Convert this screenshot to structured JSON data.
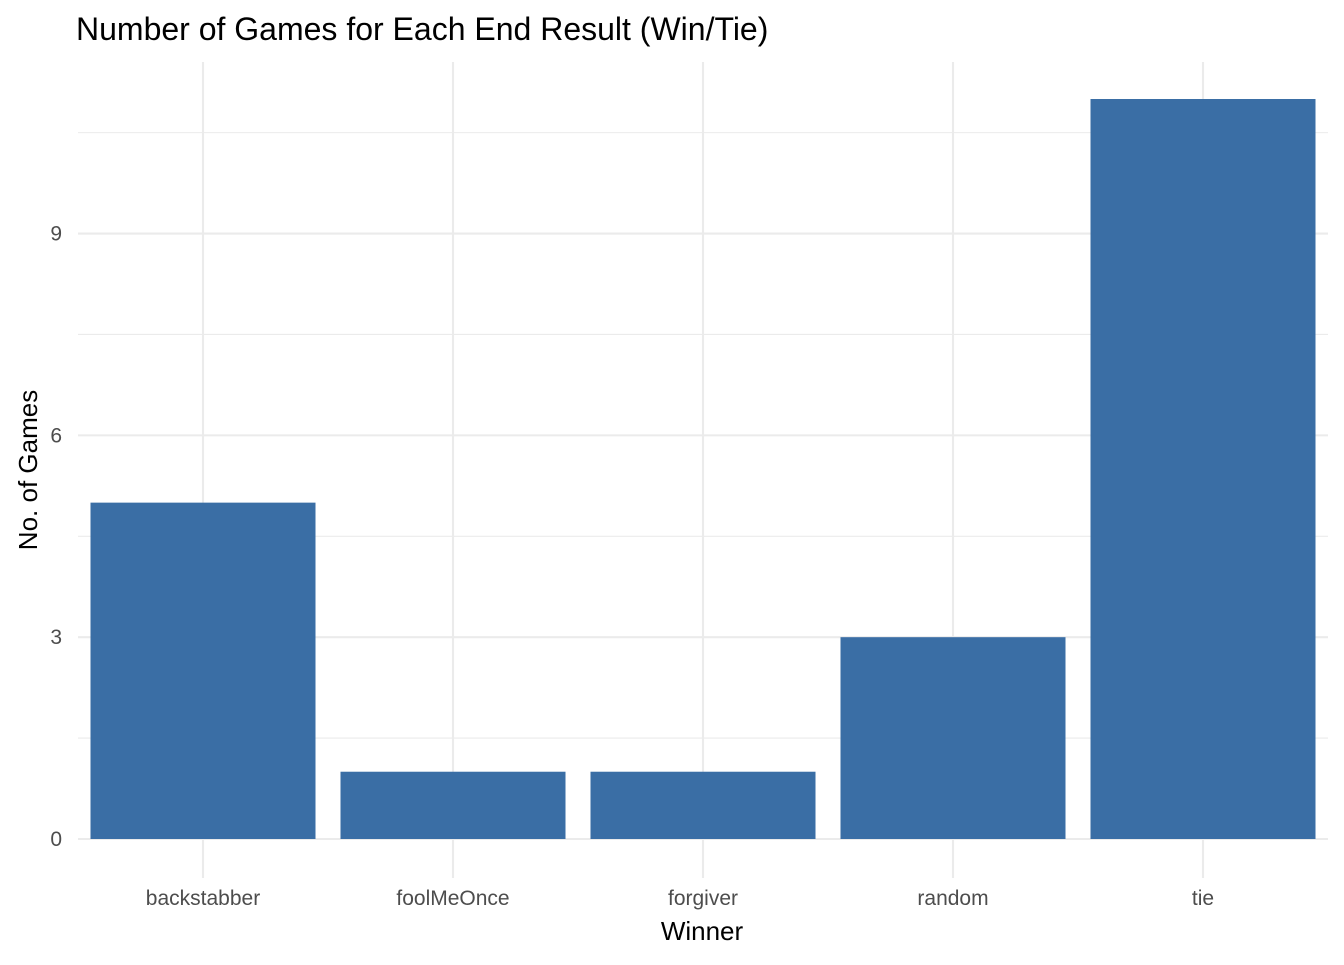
{
  "chart_data": {
    "type": "bar",
    "title": "Number of Games for Each End Result (Win/Tie)",
    "xlabel": "Winner",
    "ylabel": "No. of Games",
    "categories": [
      "backstabber",
      "foolMeOnce",
      "forgiver",
      "random",
      "tie"
    ],
    "values": [
      5,
      1,
      1,
      3,
      11
    ],
    "ylim": [
      0,
      11.55
    ],
    "yticks": [
      0,
      3,
      6,
      9
    ],
    "yticks_minor": [
      1.5,
      4.5,
      7.5,
      10.5
    ],
    "ytick_labels": [
      "0",
      "3",
      "6",
      "9"
    ],
    "bar_color": "#3a6ea5",
    "grid": true,
    "legend": "none"
  }
}
